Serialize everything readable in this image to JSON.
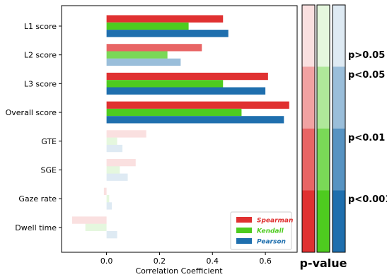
{
  "chart_data": {
    "type": "bar",
    "orientation": "horizontal",
    "categories": [
      "L1 score",
      "L2 score",
      "L3 score",
      "Overall score",
      "GTE",
      "SGE",
      "Gaze rate",
      "Dwell time"
    ],
    "series": [
      {
        "name": "Spearman",
        "color": "#e03131",
        "values": [
          0.44,
          0.36,
          0.61,
          0.69,
          0.15,
          0.11,
          -0.01,
          -0.13
        ]
      },
      {
        "name": "Kendall",
        "color": "#4ecb1f",
        "values": [
          0.31,
          0.23,
          0.44,
          0.51,
          0.04,
          0.05,
          0.01,
          -0.08
        ]
      },
      {
        "name": "Pearson",
        "color": "#1f6fae",
        "values": [
          0.46,
          0.28,
          0.6,
          0.67,
          0.06,
          0.08,
          0.02,
          0.04
        ]
      }
    ],
    "significance": [
      [
        "p<0.001",
        "p<0.001",
        "p<0.001"
      ],
      [
        "p<0.01",
        "p<0.01",
        "p<0.05"
      ],
      [
        "p<0.001",
        "p<0.001",
        "p<0.001"
      ],
      [
        "p<0.001",
        "p<0.001",
        "p<0.001"
      ],
      [
        "p>0.05",
        "p>0.05",
        "p>0.05"
      ],
      [
        "p>0.05",
        "p>0.05",
        "p>0.05"
      ],
      [
        "p>0.05",
        "p>0.05",
        "p>0.05"
      ],
      [
        "p>0.05",
        "p>0.05",
        "p>0.05"
      ]
    ],
    "xlabel": "Correlation Coefficient",
    "ylabel": "",
    "xlim": [
      -0.17,
      0.72
    ],
    "xticks": [
      0.0,
      0.2,
      0.4,
      0.6
    ],
    "xtick_labels": [
      "0.0",
      "0.2",
      "0.4",
      "0.6"
    ],
    "grid": false,
    "legend_position": "bottom-right",
    "pvalue_scale": {
      "title": "p-value",
      "levels": [
        "p>0.05",
        "p<0.05",
        "p<0.01",
        "p<0.001"
      ],
      "alphas": [
        0.15,
        0.45,
        0.75,
        1.0
      ]
    }
  }
}
